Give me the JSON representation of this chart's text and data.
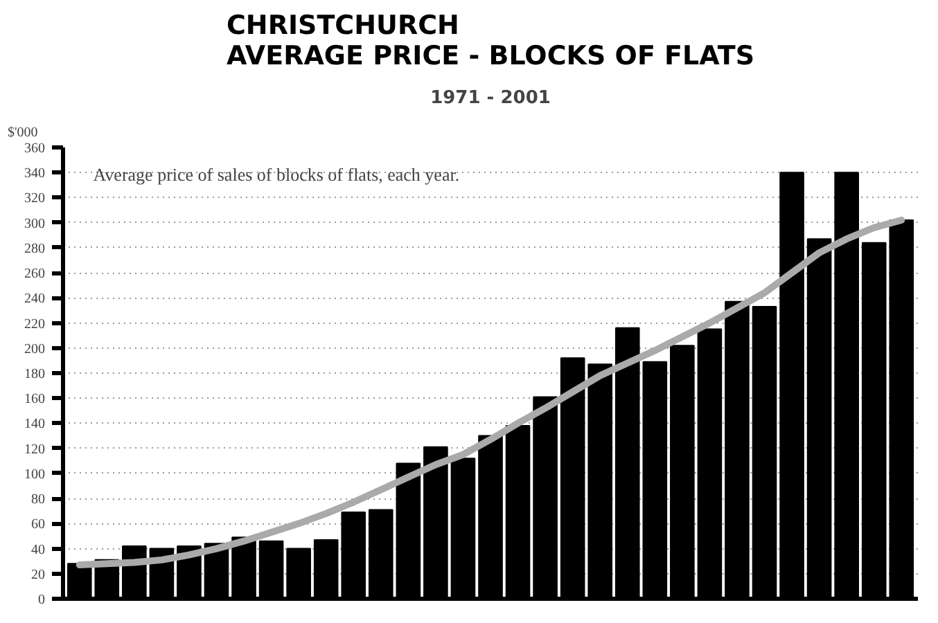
{
  "chart_data": {
    "type": "bar",
    "title": "CHRISTCHURCH\nAVERAGE PRICE - BLOCKS OF FLATS",
    "subtitle": "1971 - 2001",
    "ylabel": "$'000",
    "annotations": [
      "Average price of sales of blocks of flats, each year."
    ],
    "categories": [
      null,
      null,
      null,
      null,
      null,
      null,
      null,
      null,
      null,
      null,
      null,
      null,
      null,
      null,
      null,
      null,
      null,
      null,
      null,
      null,
      null,
      null,
      null,
      null,
      null,
      null,
      null,
      null,
      null,
      null,
      null
    ],
    "series": [
      {
        "color": "#000000",
        "values": [
          28,
          31,
          42,
          40,
          42,
          44,
          49,
          46,
          40,
          47,
          69,
          71,
          108,
          121,
          112,
          130,
          138,
          161,
          192,
          187,
          216,
          189,
          202,
          215,
          237,
          233,
          340,
          287,
          340,
          284,
          302
        ]
      },
      {
        "type": "line",
        "color": "#aaaaaa",
        "values": [
          27,
          28,
          29,
          31,
          35,
          40,
          46,
          53,
          60,
          68,
          77,
          87,
          97,
          107,
          115,
          127,
          140,
          152,
          165,
          178,
          188,
          198,
          209,
          220,
          232,
          244,
          260,
          276,
          287,
          296,
          302
        ]
      }
    ],
    "ylim": [
      0,
      360
    ],
    "yticks": [
      0,
      20,
      40,
      60,
      80,
      100,
      120,
      140,
      160,
      180,
      200,
      220,
      240,
      260,
      280,
      300,
      320,
      340,
      360
    ],
    "grid": "y",
    "tick_labels": "y",
    "line_style": "solid"
  }
}
